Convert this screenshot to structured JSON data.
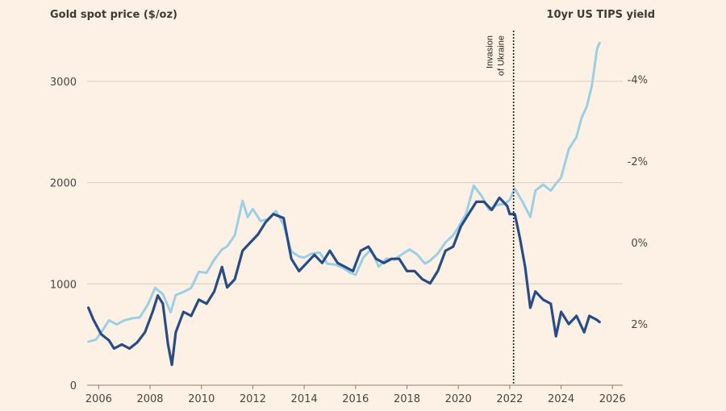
{
  "chart_data": {
    "type": "line",
    "left_axis_title": "Gold spot price ($/oz)",
    "right_axis_title": "10yr US TIPS yield",
    "x_ticks": [
      "2006",
      "2008",
      "2010",
      "2012",
      "2014",
      "2016",
      "2018",
      "2020",
      "2022",
      "2024",
      "2026"
    ],
    "xlim": [
      2005.55,
      2026.4
    ],
    "left_ylim": [
      0,
      3500
    ],
    "left_ticks": [
      "0",
      "1000",
      "2000",
      "3000"
    ],
    "left_tick_values": [
      0,
      1000,
      2000,
      3000
    ],
    "right_axis_inverted": true,
    "right_ylim": [
      3.5,
      -5.2
    ],
    "right_ticks": [
      "-4%",
      "-2%",
      "0%",
      "2%"
    ],
    "right_tick_values": [
      -4,
      -2,
      0,
      2
    ],
    "annotation": {
      "lines": [
        "Invasion",
        "of Ukraine"
      ],
      "x": 2022.15,
      "style": "dotted"
    },
    "series": [
      {
        "axis": "left",
        "color": "#9ccfe4",
        "points": [
          [
            2005.6,
            430
          ],
          [
            2005.9,
            450
          ],
          [
            2006.2,
            560
          ],
          [
            2006.4,
            640
          ],
          [
            2006.7,
            600
          ],
          [
            2007.0,
            640
          ],
          [
            2007.3,
            660
          ],
          [
            2007.6,
            670
          ],
          [
            2007.9,
            790
          ],
          [
            2008.2,
            960
          ],
          [
            2008.5,
            900
          ],
          [
            2008.8,
            720
          ],
          [
            2009.0,
            890
          ],
          [
            2009.3,
            920
          ],
          [
            2009.6,
            960
          ],
          [
            2009.9,
            1120
          ],
          [
            2010.2,
            1110
          ],
          [
            2010.5,
            1240
          ],
          [
            2010.8,
            1340
          ],
          [
            2011.0,
            1370
          ],
          [
            2011.3,
            1480
          ],
          [
            2011.6,
            1820
          ],
          [
            2011.8,
            1660
          ],
          [
            2012.0,
            1740
          ],
          [
            2012.3,
            1620
          ],
          [
            2012.6,
            1640
          ],
          [
            2012.9,
            1720
          ],
          [
            2013.2,
            1580
          ],
          [
            2013.5,
            1320
          ],
          [
            2013.8,
            1270
          ],
          [
            2014.0,
            1260
          ],
          [
            2014.3,
            1300
          ],
          [
            2014.6,
            1310
          ],
          [
            2014.9,
            1200
          ],
          [
            2015.2,
            1190
          ],
          [
            2015.5,
            1160
          ],
          [
            2015.8,
            1110
          ],
          [
            2016.0,
            1090
          ],
          [
            2016.3,
            1260
          ],
          [
            2016.6,
            1340
          ],
          [
            2016.9,
            1170
          ],
          [
            2017.2,
            1250
          ],
          [
            2017.5,
            1240
          ],
          [
            2017.8,
            1290
          ],
          [
            2018.1,
            1340
          ],
          [
            2018.4,
            1290
          ],
          [
            2018.7,
            1200
          ],
          [
            2018.9,
            1230
          ],
          [
            2019.2,
            1300
          ],
          [
            2019.5,
            1410
          ],
          [
            2019.8,
            1480
          ],
          [
            2020.0,
            1560
          ],
          [
            2020.3,
            1690
          ],
          [
            2020.6,
            1970
          ],
          [
            2020.9,
            1870
          ],
          [
            2021.2,
            1730
          ],
          [
            2021.5,
            1780
          ],
          [
            2021.8,
            1790
          ],
          [
            2022.0,
            1830
          ],
          [
            2022.2,
            1940
          ],
          [
            2022.5,
            1810
          ],
          [
            2022.8,
            1660
          ],
          [
            2023.0,
            1920
          ],
          [
            2023.3,
            1980
          ],
          [
            2023.6,
            1920
          ],
          [
            2023.8,
            1990
          ],
          [
            2024.0,
            2050
          ],
          [
            2024.3,
            2330
          ],
          [
            2024.6,
            2450
          ],
          [
            2024.8,
            2640
          ],
          [
            2025.0,
            2750
          ],
          [
            2025.2,
            2960
          ],
          [
            2025.4,
            3320
          ],
          [
            2025.5,
            3380
          ]
        ]
      },
      {
        "axis": "right",
        "color": "#284d86",
        "points": [
          [
            2005.6,
            1.6
          ],
          [
            2005.8,
            1.9
          ],
          [
            2006.1,
            2.25
          ],
          [
            2006.4,
            2.4
          ],
          [
            2006.6,
            2.6
          ],
          [
            2006.9,
            2.5
          ],
          [
            2007.2,
            2.6
          ],
          [
            2007.5,
            2.45
          ],
          [
            2007.8,
            2.2
          ],
          [
            2008.1,
            1.7
          ],
          [
            2008.3,
            1.3
          ],
          [
            2008.5,
            1.5
          ],
          [
            2008.7,
            2.5
          ],
          [
            2008.85,
            3.0
          ],
          [
            2009.0,
            2.2
          ],
          [
            2009.3,
            1.7
          ],
          [
            2009.6,
            1.8
          ],
          [
            2009.9,
            1.4
          ],
          [
            2010.2,
            1.5
          ],
          [
            2010.5,
            1.2
          ],
          [
            2010.8,
            0.6
          ],
          [
            2011.0,
            1.1
          ],
          [
            2011.3,
            0.9
          ],
          [
            2011.6,
            0.2
          ],
          [
            2011.9,
            0.0
          ],
          [
            2012.2,
            -0.2
          ],
          [
            2012.5,
            -0.5
          ],
          [
            2012.8,
            -0.7
          ],
          [
            2013.2,
            -0.6
          ],
          [
            2013.5,
            0.4
          ],
          [
            2013.8,
            0.7
          ],
          [
            2014.1,
            0.5
          ],
          [
            2014.4,
            0.3
          ],
          [
            2014.7,
            0.5
          ],
          [
            2015.0,
            0.2
          ],
          [
            2015.3,
            0.5
          ],
          [
            2015.6,
            0.6
          ],
          [
            2015.9,
            0.7
          ],
          [
            2016.2,
            0.2
          ],
          [
            2016.5,
            0.1
          ],
          [
            2016.8,
            0.4
          ],
          [
            2017.1,
            0.5
          ],
          [
            2017.4,
            0.4
          ],
          [
            2017.7,
            0.4
          ],
          [
            2018.0,
            0.7
          ],
          [
            2018.3,
            0.7
          ],
          [
            2018.6,
            0.9
          ],
          [
            2018.9,
            1.0
          ],
          [
            2019.2,
            0.7
          ],
          [
            2019.5,
            0.2
          ],
          [
            2019.8,
            0.1
          ],
          [
            2020.1,
            -0.4
          ],
          [
            2020.4,
            -0.7
          ],
          [
            2020.7,
            -1.0
          ],
          [
            2021.0,
            -1.0
          ],
          [
            2021.3,
            -0.8
          ],
          [
            2021.6,
            -1.1
          ],
          [
            2021.9,
            -0.9
          ],
          [
            2022.0,
            -0.7
          ],
          [
            2022.2,
            -0.7
          ],
          [
            2022.4,
            -0.1
          ],
          [
            2022.6,
            0.6
          ],
          [
            2022.8,
            1.6
          ],
          [
            2023.0,
            1.2
          ],
          [
            2023.3,
            1.4
          ],
          [
            2023.6,
            1.5
          ],
          [
            2023.8,
            2.3
          ],
          [
            2024.0,
            1.7
          ],
          [
            2024.3,
            2.0
          ],
          [
            2024.6,
            1.8
          ],
          [
            2024.9,
            2.2
          ],
          [
            2025.1,
            1.8
          ],
          [
            2025.4,
            1.9
          ],
          [
            2025.5,
            1.95
          ]
        ]
      }
    ]
  }
}
